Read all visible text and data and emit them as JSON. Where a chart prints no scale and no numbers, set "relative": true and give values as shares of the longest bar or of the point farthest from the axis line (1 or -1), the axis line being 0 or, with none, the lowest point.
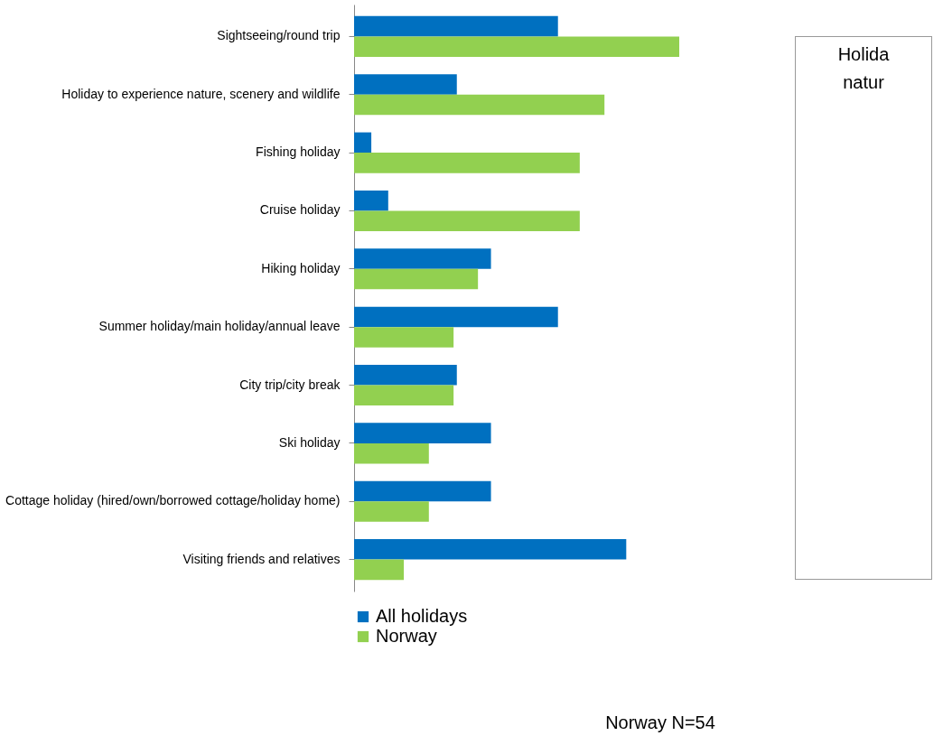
{
  "chart_data": {
    "type": "bar",
    "orientation": "horizontal",
    "relative": true,
    "legend": "bottom",
    "categories": [
      "Sightseeing/round trip",
      "Holiday to experience nature, scenery and wildlife",
      "Fishing holiday",
      "Cruise holiday",
      "Hiking holiday",
      "Summer holiday/main holiday/annual leave",
      "City trip/city break",
      "Ski holiday",
      "Cottage holiday (hired/own/borrowed cottage/holiday home)",
      "Visiting friends and relatives"
    ],
    "series": [
      {
        "name": "All holidays",
        "color": "#0070c0",
        "values": [
          0.627,
          0.316,
          0.053,
          0.105,
          0.421,
          0.627,
          0.316,
          0.421,
          0.421,
          0.837
        ]
      },
      {
        "name": "Norway",
        "color": "#92d050",
        "values": [
          1,
          0.77,
          0.694,
          0.694,
          0.381,
          0.306,
          0.306,
          0.23,
          0.23,
          0.153
        ]
      }
    ],
    "annotations": [
      "Holida",
      "natur",
      "Norway N=54"
    ]
  }
}
